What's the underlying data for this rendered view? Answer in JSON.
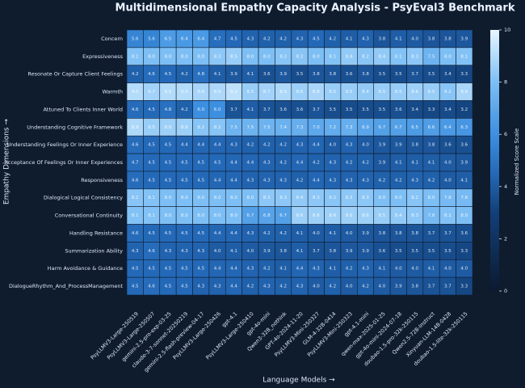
{
  "chart_data": {
    "type": "heatmap",
    "title": "Multidimensional Empathy Capacity Analysis - PsyEval3 Benchmark",
    "x_label": "Language Models →",
    "y_label": "Empathy Dimensions →",
    "colorbar_label": "Normalized Score Scale",
    "x": [
      "PsyLLMV3-Large-250519",
      "PsyLLMV3-Large-250507",
      "gemini-2.5-pro-exp-03-25",
      "claude-3-7-sonnet-20250219",
      "gemini-2.5-flash-preview-04-17",
      "PsyLLMV3-Large-250426",
      "gpt-4.1",
      "PsyLLMV3-Large-250410",
      "gpt-4o-mini",
      "Qwen3-32B_nothink",
      "GPT-4o-2024-11-20",
      "PsyLLMV3-Mini-250327",
      "GLM-4-32B-0414",
      "PsyLLMV3-Mini-250323",
      "gpt-4.1-mini",
      "qwen-max-2025-01-25",
      "gpt-4o-mini-2024-07-18",
      "doubao-1.5-pro-32k-250115",
      "Qwen2.5-72B-Instruct",
      "Xinyuan-LLM-14B-0428",
      "doubao-1.5-lite-32k-250115"
    ],
    "y": [
      "Concern",
      "Expressiveness",
      "Resonate Or Capture Client Feelings",
      "Warmth",
      "Attuned To Clients Inner World",
      "Understanding Cognitive Framework",
      "Understanding Feelings Or Inner Experience",
      "Acceptance Of Feelings Or Inner Experiences",
      "Responsiveness",
      "Dialogical Logical Consistency",
      "Conversational Continuity",
      "Handling Resistance",
      "Summarization Ability",
      "Harm Avoidance & Guidance",
      "DialogueRhythm_And_ProcessManagement"
    ],
    "values": [
      [
        5.6,
        5.6,
        6.5,
        6.4,
        6.4,
        4.7,
        4.5,
        4.3,
        4.2,
        4.2,
        4.3,
        4.5,
        4.2,
        4.1,
        4.3,
        3.8,
        4.1,
        4.0,
        3.8,
        3.8,
        3.9
      ],
      [
        8.1,
        8.0,
        8.0,
        8.0,
        8.0,
        8.3,
        8.5,
        8.0,
        8.0,
        8.2,
        8.2,
        8.0,
        8.1,
        8.4,
        8.2,
        8.4,
        8.1,
        8.3,
        7.5,
        8.0,
        8.1
      ],
      [
        4.2,
        4.6,
        4.5,
        4.2,
        4.8,
        4.1,
        3.9,
        4.1,
        3.6,
        3.9,
        3.5,
        3.8,
        3.8,
        3.6,
        3.8,
        3.5,
        3.5,
        3.7,
        3.5,
        3.4,
        3.3
      ],
      [
        9.0,
        8.7,
        9.0,
        9.0,
        8.8,
        8.9,
        9.2,
        8.5,
        8.7,
        8.9,
        8.6,
        8.8,
        8.5,
        8.5,
        8.4,
        8.5,
        8.5,
        8.6,
        8.5,
        8.2,
        8.8
      ],
      [
        4.6,
        4.5,
        4.8,
        4.2,
        6.0,
        6.0,
        3.7,
        4.1,
        3.7,
        3.6,
        3.6,
        3.7,
        3.5,
        3.5,
        3.5,
        3.5,
        3.6,
        3.4,
        3.3,
        3.4,
        3.2
      ],
      [
        8.9,
        8.5,
        8.6,
        8.6,
        8.2,
        8.2,
        7.5,
        7.5,
        7.5,
        7.4,
        7.3,
        7.0,
        7.2,
        7.3,
        6.9,
        6.7,
        6.7,
        6.5,
        6.6,
        6.4,
        6.3
      ],
      [
        4.6,
        4.5,
        4.5,
        4.4,
        4.4,
        4.4,
        4.3,
        4.2,
        4.2,
        4.2,
        4.3,
        4.4,
        4.0,
        4.3,
        4.0,
        3.9,
        3.9,
        3.8,
        3.8,
        3.6,
        3.6
      ],
      [
        4.7,
        4.5,
        4.5,
        4.5,
        4.5,
        4.5,
        4.4,
        4.4,
        4.3,
        4.2,
        4.4,
        4.2,
        4.3,
        4.2,
        4.2,
        3.9,
        4.1,
        4.1,
        4.1,
        4.0,
        3.9
      ],
      [
        4.6,
        4.5,
        4.5,
        4.5,
        4.5,
        4.4,
        4.4,
        4.3,
        4.3,
        4.3,
        4.2,
        4.4,
        4.3,
        4.3,
        4.3,
        4.2,
        4.2,
        4.3,
        4.2,
        4.0,
        4.1
      ],
      [
        8.2,
        8.1,
        8.0,
        8.0,
        8.0,
        8.0,
        8.0,
        8.0,
        8.3,
        8.3,
        8.4,
        8.3,
        8.2,
        8.3,
        8.3,
        8.0,
        8.0,
        8.2,
        8.0,
        7.8,
        7.8
      ],
      [
        8.1,
        8.1,
        8.0,
        8.0,
        8.0,
        8.0,
        8.0,
        6.7,
        6.8,
        6.7,
        8.6,
        8.6,
        8.6,
        8.6,
        8.6,
        8.5,
        8.4,
        8.3,
        7.8,
        8.1,
        8.0
      ],
      [
        4.6,
        4.5,
        4.5,
        4.5,
        4.5,
        4.4,
        4.4,
        4.3,
        4.2,
        4.2,
        4.1,
        4.0,
        4.1,
        4.0,
        3.9,
        3.8,
        3.8,
        3.8,
        3.7,
        3.7,
        3.6
      ],
      [
        4.3,
        4.6,
        4.3,
        4.3,
        4.3,
        4.0,
        4.1,
        4.0,
        3.9,
        3.8,
        4.1,
        3.7,
        3.8,
        3.9,
        3.9,
        3.6,
        3.5,
        3.5,
        3.5,
        3.5,
        3.3
      ],
      [
        4.5,
        4.5,
        4.5,
        4.5,
        4.5,
        4.4,
        4.4,
        4.3,
        4.2,
        4.1,
        4.4,
        4.3,
        4.1,
        4.2,
        4.3,
        4.1,
        4.0,
        4.0,
        4.1,
        4.0,
        4.0
      ],
      [
        4.5,
        4.6,
        4.5,
        4.5,
        4.3,
        4.3,
        4.4,
        4.2,
        4.3,
        4.2,
        4.3,
        4.0,
        4.2,
        4.0,
        4.2,
        4.0,
        3.9,
        3.8,
        3.7,
        3.7,
        3.3
      ]
    ],
    "zlim": [
      0,
      10
    ],
    "zticks": [
      0,
      2,
      4,
      6,
      8,
      10
    ]
  }
}
